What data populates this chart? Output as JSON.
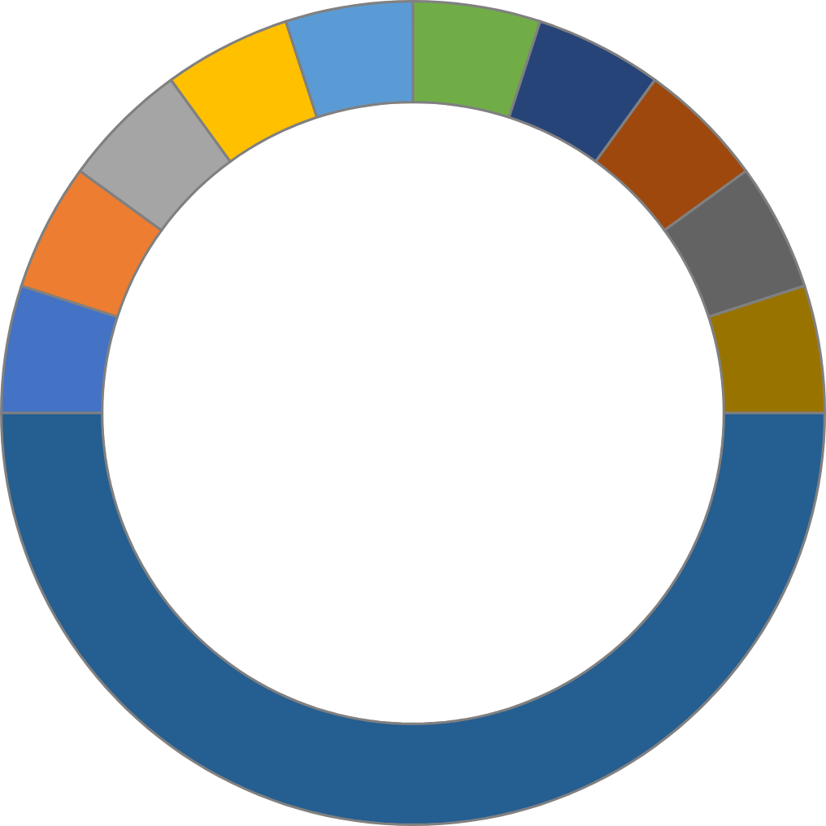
{
  "chart_data": {
    "type": "donut",
    "categories": [
      null,
      null,
      null,
      null,
      null,
      null,
      null,
      null,
      null,
      null,
      null
    ],
    "values": [
      5,
      5,
      5,
      5,
      5,
      5,
      5,
      5,
      5,
      5,
      50
    ],
    "colors": [
      "#4472c4",
      "#ed7d31",
      "#a5a5a5",
      "#ffc000",
      "#5b9bd5",
      "#70ad47",
      "#264478",
      "#9e480e",
      "#636363",
      "#997300",
      "#255e91"
    ]
  }
}
